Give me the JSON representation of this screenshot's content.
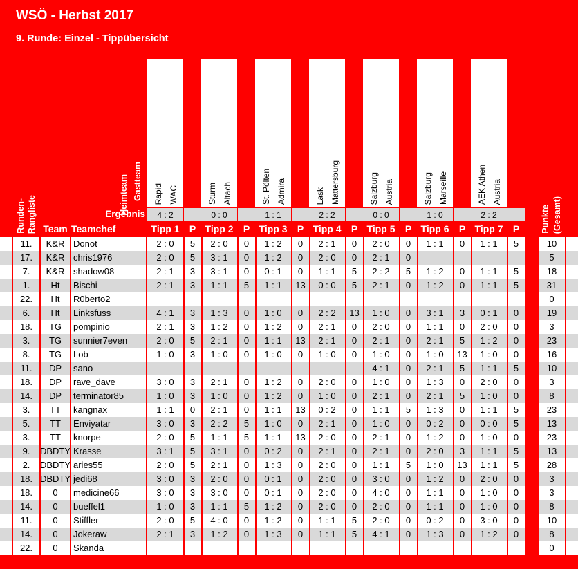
{
  "header": {
    "title": "WSÖ - Herbst 2017",
    "subtitle": "9. Runde: Einzel - Tippübersicht"
  },
  "labels": {
    "heimteam": "Heimteam",
    "gastteam": "Gastteam",
    "ergebnis": "Ergebnis",
    "rangliste_1": "Runden-",
    "rangliste_2": "Rangliste",
    "team": "Team",
    "teamchef": "Teamchef",
    "p": "P",
    "punkte_1": "Punkte",
    "punkte_2": "(Gesamt)"
  },
  "matches": [
    {
      "home": "Rapid",
      "away": "WAC",
      "result": "4 : 2",
      "tipp_label": "Tipp 1"
    },
    {
      "home": "Sturm",
      "away": "Altach",
      "result": "0 : 0",
      "tipp_label": "Tipp 2"
    },
    {
      "home": "St. Pölten",
      "away": "Admira",
      "result": "1 : 1",
      "tipp_label": "Tipp 3"
    },
    {
      "home": "Lask",
      "away": "Mattersburg",
      "result": "2 : 2",
      "tipp_label": "Tipp 4"
    },
    {
      "home": "Salzburg",
      "away": "Austria",
      "result": "0 : 0",
      "tipp_label": "Tipp 5"
    },
    {
      "home": "Salzburg",
      "away": "Marseille",
      "result": "1 : 0",
      "tipp_label": "Tipp 6"
    },
    {
      "home": "AEK Athen",
      "away": "Austria",
      "result": "2 : 2",
      "tipp_label": "Tipp 7"
    }
  ],
  "rows": [
    {
      "rank": "11.",
      "team": "K&R",
      "chef": "Donot",
      "tips": [
        "2 : 0",
        "5",
        "2 : 0",
        "0",
        "1 : 2",
        "0",
        "2 : 1",
        "0",
        "2 : 0",
        "0",
        "1 : 1",
        "0",
        "1 : 1",
        "5"
      ],
      "total": "10"
    },
    {
      "rank": "17.",
      "team": "K&R",
      "chef": "chris1976",
      "tips": [
        "2 : 0",
        "5",
        "3 : 1",
        "0",
        "1 : 2",
        "0",
        "2 : 0",
        "0",
        "2 : 1",
        "0",
        "",
        "",
        "",
        ""
      ],
      "total": "5"
    },
    {
      "rank": "7.",
      "team": "K&R",
      "chef": "shadow08",
      "tips": [
        "2 : 1",
        "3",
        "3 : 1",
        "0",
        "0 : 1",
        "0",
        "1 : 1",
        "5",
        "2 : 2",
        "5",
        "1 : 2",
        "0",
        "1 : 1",
        "5"
      ],
      "total": "18"
    },
    {
      "rank": "1.",
      "team": "Ht",
      "chef": "Bischi",
      "tips": [
        "2 : 1",
        "3",
        "1 : 1",
        "5",
        "1 : 1",
        "13",
        "0 : 0",
        "5",
        "2 : 1",
        "0",
        "1 : 2",
        "0",
        "1 : 1",
        "5"
      ],
      "total": "31"
    },
    {
      "rank": "22.",
      "team": "Ht",
      "chef": "R0berto2",
      "tips": [
        "",
        "",
        "",
        "",
        "",
        "",
        "",
        "",
        "",
        "",
        "",
        "",
        "",
        ""
      ],
      "total": "0"
    },
    {
      "rank": "6.",
      "team": "Ht",
      "chef": "Linksfuss",
      "tips": [
        "4 : 1",
        "3",
        "1 : 3",
        "0",
        "1 : 0",
        "0",
        "2 : 2",
        "13",
        "1 : 0",
        "0",
        "3 : 1",
        "3",
        "0 : 1",
        "0"
      ],
      "total": "19"
    },
    {
      "rank": "18.",
      "team": "TG",
      "chef": "pompinio",
      "tips": [
        "2 : 1",
        "3",
        "1 : 2",
        "0",
        "1 : 2",
        "0",
        "2 : 1",
        "0",
        "2 : 0",
        "0",
        "1 : 1",
        "0",
        "2 : 0",
        "0"
      ],
      "total": "3"
    },
    {
      "rank": "3.",
      "team": "TG",
      "chef": "sunnier7even",
      "tips": [
        "2 : 0",
        "5",
        "2 : 1",
        "0",
        "1 : 1",
        "13",
        "2 : 1",
        "0",
        "2 : 1",
        "0",
        "2 : 1",
        "5",
        "1 : 2",
        "0"
      ],
      "total": "23"
    },
    {
      "rank": "8.",
      "team": "TG",
      "chef": "Lob",
      "tips": [
        "1 : 0",
        "3",
        "1 : 0",
        "0",
        "1 : 0",
        "0",
        "1 : 0",
        "0",
        "1 : 0",
        "0",
        "1 : 0",
        "13",
        "1 : 0",
        "0"
      ],
      "total": "16"
    },
    {
      "rank": "11.",
      "team": "DP",
      "chef": "sano",
      "tips": [
        "",
        "",
        "",
        "",
        "",
        "",
        "",
        "",
        "4 : 1",
        "0",
        "2 : 1",
        "5",
        "1 : 1",
        "5"
      ],
      "total": "10"
    },
    {
      "rank": "18.",
      "team": "DP",
      "chef": "rave_dave",
      "tips": [
        "3 : 0",
        "3",
        "2 : 1",
        "0",
        "1 : 2",
        "0",
        "2 : 0",
        "0",
        "1 : 0",
        "0",
        "1 : 3",
        "0",
        "2 : 0",
        "0"
      ],
      "total": "3"
    },
    {
      "rank": "14.",
      "team": "DP",
      "chef": "terminator85",
      "tips": [
        "1 : 0",
        "3",
        "1 : 0",
        "0",
        "1 : 2",
        "0",
        "1 : 0",
        "0",
        "2 : 1",
        "0",
        "2 : 1",
        "5",
        "1 : 0",
        "0"
      ],
      "total": "8"
    },
    {
      "rank": "3.",
      "team": "TT",
      "chef": "kangnax",
      "tips": [
        "1 : 1",
        "0",
        "2 : 1",
        "0",
        "1 : 1",
        "13",
        "0 : 2",
        "0",
        "1 : 1",
        "5",
        "1 : 3",
        "0",
        "1 : 1",
        "5"
      ],
      "total": "23"
    },
    {
      "rank": "5.",
      "team": "TT",
      "chef": "Enviyatar",
      "tips": [
        "3 : 0",
        "3",
        "2 : 2",
        "5",
        "1 : 0",
        "0",
        "2 : 1",
        "0",
        "1 : 0",
        "0",
        "0 : 2",
        "0",
        "0 : 0",
        "5"
      ],
      "total": "13"
    },
    {
      "rank": "3.",
      "team": "TT",
      "chef": "knorpe",
      "tips": [
        "2 : 0",
        "5",
        "1 : 1",
        "5",
        "1 : 1",
        "13",
        "2 : 0",
        "0",
        "2 : 1",
        "0",
        "1 : 2",
        "0",
        "1 : 0",
        "0"
      ],
      "total": "23"
    },
    {
      "rank": "9.",
      "team": "DBDTY",
      "chef": "Krasse",
      "tips": [
        "3 : 1",
        "5",
        "3 : 1",
        "0",
        "0 : 2",
        "0",
        "2 : 1",
        "0",
        "2 : 1",
        "0",
        "2 : 0",
        "3",
        "1 : 1",
        "5"
      ],
      "total": "13"
    },
    {
      "rank": "2.",
      "team": "DBDTY",
      "chef": "aries55",
      "tips": [
        "2 : 0",
        "5",
        "2 : 1",
        "0",
        "1 : 3",
        "0",
        "2 : 0",
        "0",
        "1 : 1",
        "5",
        "1 : 0",
        "13",
        "1 : 1",
        "5"
      ],
      "total": "28"
    },
    {
      "rank": "18.",
      "team": "DBDTY",
      "chef": "jedi68",
      "tips": [
        "3 : 0",
        "3",
        "2 : 0",
        "0",
        "0 : 1",
        "0",
        "2 : 0",
        "0",
        "3 : 0",
        "0",
        "1 : 2",
        "0",
        "2 : 0",
        "0"
      ],
      "total": "3"
    },
    {
      "rank": "18.",
      "team": "0",
      "chef": "medicine66",
      "tips": [
        "3 : 0",
        "3",
        "3 : 0",
        "0",
        "0 : 1",
        "0",
        "2 : 0",
        "0",
        "4 : 0",
        "0",
        "1 : 1",
        "0",
        "1 : 0",
        "0"
      ],
      "total": "3"
    },
    {
      "rank": "14.",
      "team": "0",
      "chef": "bueffel1",
      "tips": [
        "1 : 0",
        "3",
        "1 : 1",
        "5",
        "1 : 2",
        "0",
        "2 : 0",
        "0",
        "2 : 0",
        "0",
        "1 : 1",
        "0",
        "1 : 0",
        "0"
      ],
      "total": "8"
    },
    {
      "rank": "11.",
      "team": "0",
      "chef": "Stiffler",
      "tips": [
        "2 : 0",
        "5",
        "4 : 0",
        "0",
        "1 : 2",
        "0",
        "1 : 1",
        "5",
        "2 : 0",
        "0",
        "0 : 2",
        "0",
        "3 : 0",
        "0"
      ],
      "total": "10"
    },
    {
      "rank": "14.",
      "team": "0",
      "chef": "Jokeraw",
      "tips": [
        "2 : 1",
        "3",
        "1 : 2",
        "0",
        "1 : 3",
        "0",
        "1 : 1",
        "5",
        "4 : 1",
        "0",
        "1 : 3",
        "0",
        "1 : 2",
        "0"
      ],
      "total": "8"
    },
    {
      "rank": "22.",
      "team": "0",
      "chef": "Skanda",
      "tips": [
        "",
        "",
        "",
        "",
        "",
        "",
        "",
        "",
        "",
        "",
        "",
        "",
        "",
        ""
      ],
      "total": "0"
    }
  ]
}
